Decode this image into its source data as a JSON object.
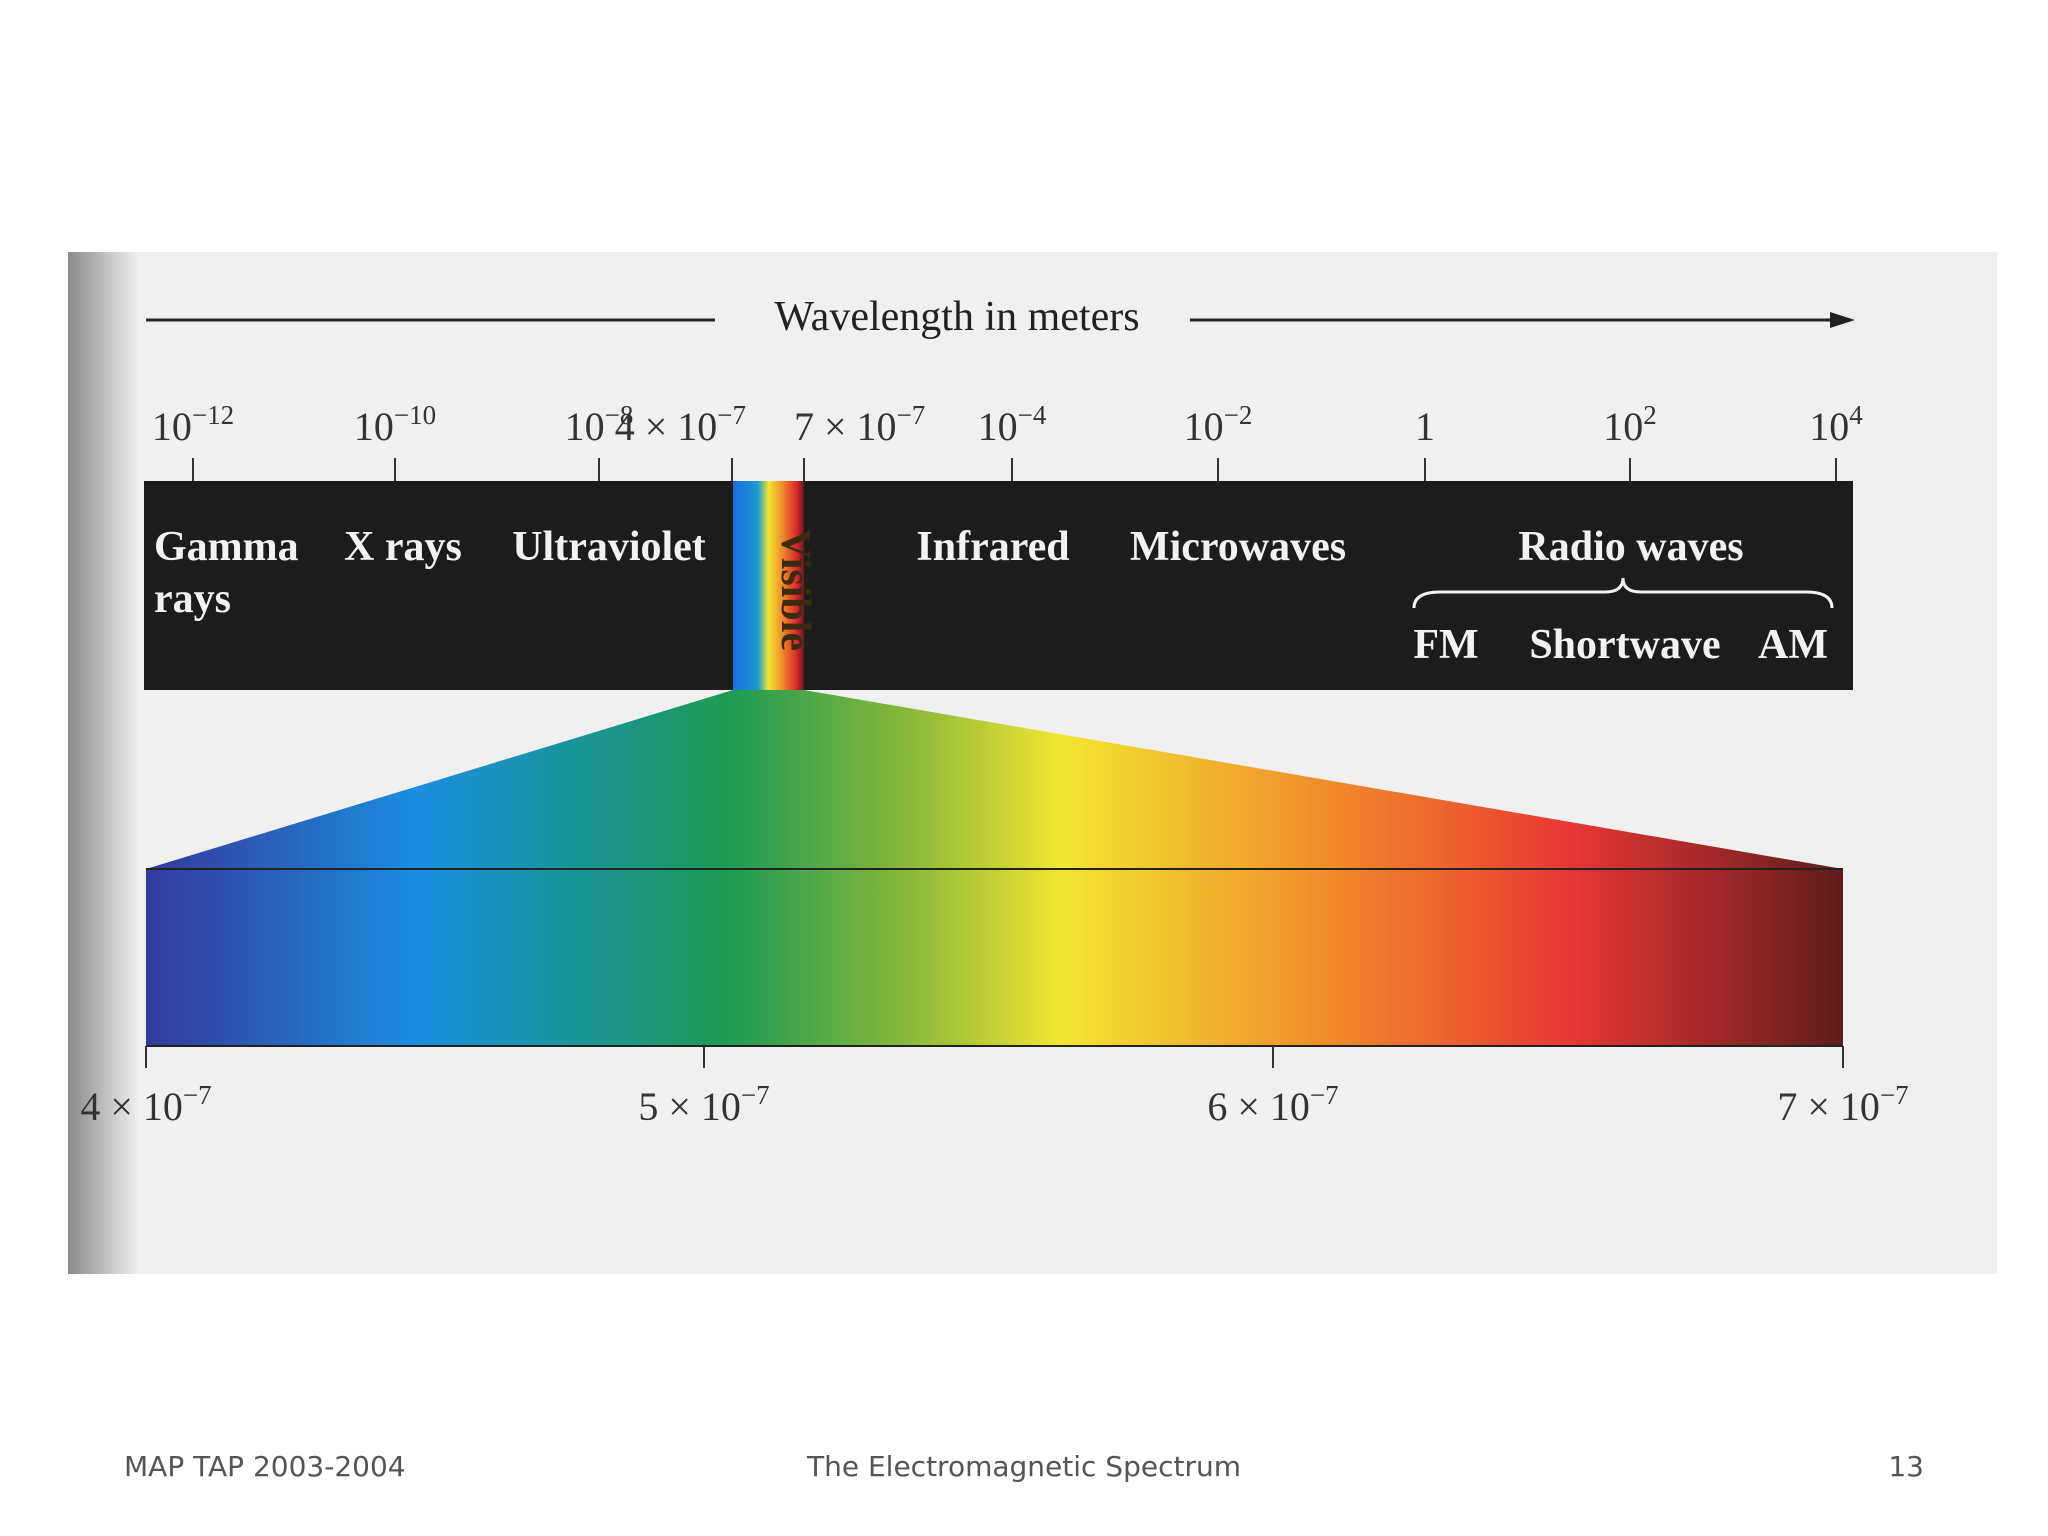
{
  "figure": {
    "axis_label": "Wavelength in meters",
    "top_ticks": [
      {
        "text": "10",
        "sup": "−12"
      },
      {
        "text": "10",
        "sup": "−10"
      },
      {
        "text": "10",
        "sup": "−8"
      },
      {
        "text": "4 × 10",
        "sup": "−7"
      },
      {
        "text": "7 × 10",
        "sup": "−7"
      },
      {
        "text": "10",
        "sup": "−4"
      },
      {
        "text": "10",
        "sup": "−2"
      },
      {
        "text": "1"
      },
      {
        "text": "10",
        "sup": "2"
      },
      {
        "text": "10",
        "sup": "4"
      }
    ],
    "bands": {
      "gamma": [
        "Gamma",
        "rays"
      ],
      "xrays": "X rays",
      "ultraviolet": "Ultraviolet",
      "visible": "Visible",
      "infrared": "Infrared",
      "microwaves": "Microwaves",
      "radio": "Radio waves",
      "fm": "FM",
      "shortwave": "Shortwave",
      "am": "AM"
    },
    "bottom_ticks": [
      {
        "text": "4 × 10",
        "sup": "−7"
      },
      {
        "text": "5 × 10",
        "sup": "−7"
      },
      {
        "text": "6 × 10",
        "sup": "−7"
      },
      {
        "text": "7 × 10",
        "sup": "−7"
      }
    ]
  },
  "footer": {
    "left": "MAP TAP 2003-2004",
    "center": "The Electromagnetic Spectrum",
    "right": "13"
  }
}
